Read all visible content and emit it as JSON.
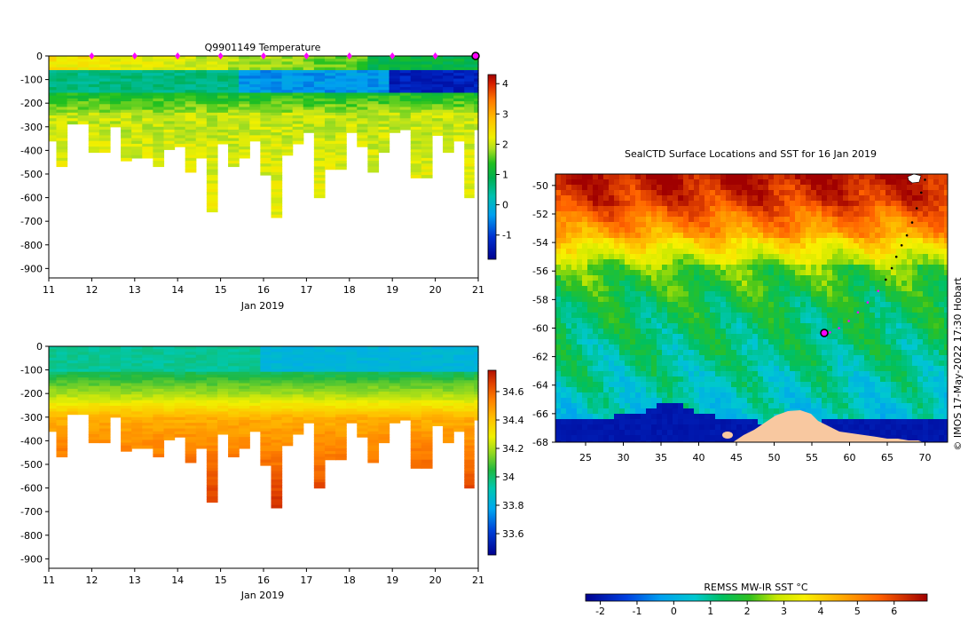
{
  "chart_data": [
    {
      "type": "heatmap",
      "title": "Q9901149  Temperature",
      "xlabel": "Jan 2019",
      "ylabel": "",
      "xlim": [
        11,
        21
      ],
      "ylim": [
        -940,
        0
      ],
      "x_ticks": [
        "11",
        "12",
        "13",
        "14",
        "15",
        "16",
        "17",
        "18",
        "19",
        "20",
        "21"
      ],
      "y_ticks": [
        "0",
        "-100",
        "-200",
        "-300",
        "-400",
        "-500",
        "-600",
        "-700",
        "-800",
        "-900"
      ],
      "colorbar_range": [
        -1.8,
        4.3
      ],
      "colorbar_ticks": [
        "-1",
        "0",
        "1",
        "2",
        "3",
        "4"
      ],
      "surface_marker_days": [
        12,
        13,
        14,
        15,
        16,
        17,
        18,
        19,
        20
      ],
      "profiles": [
        {
          "x": 11.05,
          "depth": 350
        },
        {
          "x": 11.3,
          "depth": 460
        },
        {
          "x": 11.55,
          "depth": 280
        },
        {
          "x": 11.8,
          "depth": 280
        },
        {
          "x": 12.05,
          "depth": 400
        },
        {
          "x": 12.3,
          "depth": 400
        },
        {
          "x": 12.55,
          "depth": 290
        },
        {
          "x": 12.8,
          "depth": 440
        },
        {
          "x": 13.05,
          "depth": 430
        },
        {
          "x": 13.3,
          "depth": 430
        },
        {
          "x": 13.55,
          "depth": 460
        },
        {
          "x": 13.8,
          "depth": 390
        },
        {
          "x": 14.05,
          "depth": 380
        },
        {
          "x": 14.3,
          "depth": 490
        },
        {
          "x": 14.55,
          "depth": 430
        },
        {
          "x": 14.8,
          "depth": 650
        },
        {
          "x": 15.05,
          "depth": 370
        },
        {
          "x": 15.3,
          "depth": 460
        },
        {
          "x": 15.55,
          "depth": 430
        },
        {
          "x": 15.8,
          "depth": 360
        },
        {
          "x": 16.05,
          "depth": 500
        },
        {
          "x": 16.3,
          "depth": 680
        },
        {
          "x": 16.55,
          "depth": 420
        },
        {
          "x": 16.8,
          "depth": 370
        },
        {
          "x": 17.05,
          "depth": 320
        },
        {
          "x": 17.3,
          "depth": 600
        },
        {
          "x": 17.55,
          "depth": 470
        },
        {
          "x": 17.8,
          "depth": 480
        },
        {
          "x": 18.05,
          "depth": 320
        },
        {
          "x": 18.3,
          "depth": 380
        },
        {
          "x": 18.55,
          "depth": 490
        },
        {
          "x": 18.8,
          "depth": 400
        },
        {
          "x": 19.05,
          "depth": 320
        },
        {
          "x": 19.3,
          "depth": 310
        },
        {
          "x": 19.55,
          "depth": 510
        },
        {
          "x": 19.8,
          "depth": 510
        },
        {
          "x": 20.05,
          "depth": 330
        },
        {
          "x": 20.3,
          "depth": 400
        },
        {
          "x": 20.55,
          "depth": 360
        },
        {
          "x": 20.8,
          "depth": 590
        },
        {
          "x": 21.0,
          "depth": 310
        }
      ]
    },
    {
      "type": "heatmap",
      "title": "",
      "xlabel": "Jan 2019",
      "ylabel": "",
      "xlim": [
        11,
        21
      ],
      "ylim": [
        -940,
        0
      ],
      "x_ticks": [
        "11",
        "12",
        "13",
        "14",
        "15",
        "16",
        "17",
        "18",
        "19",
        "20",
        "21"
      ],
      "y_ticks": [
        "0",
        "-100",
        "-200",
        "-300",
        "-400",
        "-500",
        "-600",
        "-700",
        "-800",
        "-900"
      ],
      "colorbar_range": [
        33.45,
        34.75
      ],
      "colorbar_ticks": [
        "33.6",
        "33.8",
        "34",
        "34.2",
        "34.4",
        "34.6"
      ]
    },
    {
      "type": "heatmap",
      "title": "SealCTD Surface Locations and SST for 16 Jan 2019",
      "xlabel": "",
      "ylabel": "",
      "xlim": [
        21,
        73
      ],
      "ylim": [
        -68,
        -49.2
      ],
      "x_ticks": [
        "25",
        "30",
        "35",
        "40",
        "45",
        "50",
        "55",
        "60",
        "65",
        "70"
      ],
      "y_ticks": [
        "-50",
        "-52",
        "-54",
        "-56",
        "-58",
        "-60",
        "-62",
        "-64",
        "-66",
        "-68"
      ],
      "colorbar_label": "REMSS MW-IR SST °C",
      "colorbar_range": [
        -2.4,
        6.9
      ],
      "colorbar_ticks": [
        "-2",
        "-1",
        "0",
        "1",
        "2",
        "3",
        "4",
        "5",
        "6"
      ],
      "credit": "© IMOS 17-May-2022 17:30 Hobart",
      "track": [
        {
          "lon": 70.0,
          "lat": -49.6
        },
        {
          "lon": 69.5,
          "lat": -50.5
        },
        {
          "lon": 68.9,
          "lat": -51.6
        },
        {
          "lon": 68.3,
          "lat": -52.6
        },
        {
          "lon": 67.6,
          "lat": -53.5
        },
        {
          "lon": 66.9,
          "lat": -54.2
        },
        {
          "lon": 66.2,
          "lat": -55.0
        },
        {
          "lon": 65.6,
          "lat": -55.8
        },
        {
          "lon": 64.8,
          "lat": -56.6
        },
        {
          "lon": 63.8,
          "lat": -57.4
        },
        {
          "lon": 62.4,
          "lat": -58.2
        },
        {
          "lon": 61.1,
          "lat": -58.9
        },
        {
          "lon": 59.9,
          "lat": -59.5
        },
        {
          "lon": 58.6,
          "lat": -60.0
        },
        {
          "lon": 57.4,
          "lat": -60.3
        }
      ],
      "current_position": {
        "lon": 57.4,
        "lat": -60.3
      }
    }
  ]
}
